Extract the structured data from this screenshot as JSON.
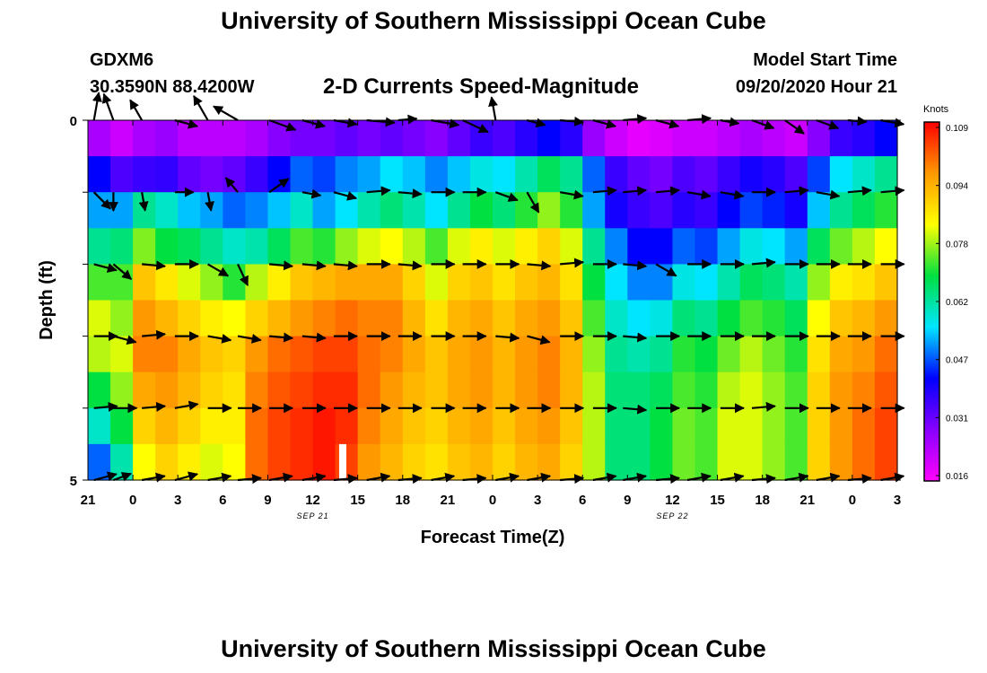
{
  "header": {
    "title": "University of Southern Mississippi Ocean Cube",
    "station_id": "GDXM6",
    "station_coords": "30.3590N 88.4200W",
    "plot_title": "2-D Currents Speed-Magnitude",
    "model_start_label": "Model Start Time",
    "model_start_value": "09/20/2020 Hour 21"
  },
  "footer": {
    "title": "University of Southern Mississippi Ocean Cube"
  },
  "chart_data": {
    "type": "heatmap",
    "title": "2-D Currents Speed-Magnitude",
    "xlabel": "Forecast Time(Z)",
    "ylabel": "Depth (ft)",
    "x_tick_labels": [
      "21",
      "0",
      "3",
      "6",
      "9",
      "12",
      "15",
      "18",
      "21",
      "0",
      "3",
      "6",
      "9",
      "12",
      "15",
      "18",
      "21",
      "0",
      "3"
    ],
    "x_date_labels": [
      {
        "label": "SEP 21",
        "tick_index": 5
      },
      {
        "label": "SEP 22",
        "tick_index": 13
      }
    ],
    "y_tick_labels": [
      "0",
      "5"
    ],
    "ylim": [
      0,
      5
    ],
    "time_range_hours": [
      0,
      54
    ],
    "colorbar": {
      "units": "Knots",
      "ticks": [
        "0.109",
        "0.094",
        "0.078",
        "0.062",
        "0.047",
        "0.031",
        "0.016"
      ],
      "range": [
        0.012,
        0.11
      ],
      "colors": [
        "#ff00ff",
        "#8800ff",
        "#0000ff",
        "#00e5ff",
        "#00e040",
        "#ffff00",
        "#ff9900",
        "#ff0000"
      ]
    },
    "depth_layers_ft": [
      0,
      1,
      2,
      3,
      4,
      5
    ],
    "speed_knots": [
      [
        0.022,
        0.04,
        0.05,
        0.062,
        0.072,
        0.08,
        0.078,
        0.068,
        0.058,
        0.046
      ],
      [
        0.018,
        0.032,
        0.05,
        0.064,
        0.072,
        0.076,
        0.08,
        0.076,
        0.068,
        0.06
      ],
      [
        0.022,
        0.034,
        0.062,
        0.075,
        0.09,
        0.096,
        0.098,
        0.094,
        0.088,
        0.082
      ],
      [
        0.024,
        0.035,
        0.058,
        0.068,
        0.085,
        0.092,
        0.098,
        0.096,
        0.092,
        0.088
      ],
      [
        0.02,
        0.03,
        0.052,
        0.066,
        0.08,
        0.088,
        0.094,
        0.092,
        0.088,
        0.084
      ],
      [
        0.02,
        0.028,
        0.05,
        0.062,
        0.076,
        0.084,
        0.09,
        0.088,
        0.084,
        0.08
      ],
      [
        0.02,
        0.03,
        0.046,
        0.058,
        0.07,
        0.082,
        0.088,
        0.086,
        0.084,
        0.082
      ],
      [
        0.022,
        0.034,
        0.048,
        0.06,
        0.078,
        0.088,
        0.096,
        0.098,
        0.1,
        0.1
      ],
      [
        0.026,
        0.04,
        0.052,
        0.066,
        0.084,
        0.092,
        0.1,
        0.102,
        0.104,
        0.104
      ],
      [
        0.028,
        0.046,
        0.058,
        0.072,
        0.09,
        0.096,
        0.102,
        0.104,
        0.106,
        0.106
      ],
      [
        0.028,
        0.044,
        0.05,
        0.07,
        0.092,
        0.098,
        0.104,
        0.106,
        0.108,
        0.108
      ],
      [
        0.03,
        0.048,
        0.054,
        0.076,
        0.094,
        0.1,
        0.104,
        0.106,
        0.106,
        0.104
      ],
      [
        0.028,
        0.05,
        0.06,
        0.08,
        0.094,
        0.098,
        0.1,
        0.1,
        0.098,
        0.096
      ],
      [
        0.03,
        0.054,
        0.064,
        0.082,
        0.094,
        0.098,
        0.098,
        0.096,
        0.094,
        0.092
      ],
      [
        0.028,
        0.052,
        0.06,
        0.078,
        0.088,
        0.092,
        0.094,
        0.092,
        0.09,
        0.088
      ],
      [
        0.026,
        0.048,
        0.054,
        0.072,
        0.08,
        0.086,
        0.09,
        0.09,
        0.088,
        0.086
      ],
      [
        0.03,
        0.052,
        0.062,
        0.08,
        0.088,
        0.092,
        0.094,
        0.094,
        0.092,
        0.09
      ],
      [
        0.034,
        0.056,
        0.068,
        0.084,
        0.09,
        0.094,
        0.096,
        0.096,
        0.094,
        0.092
      ],
      [
        0.032,
        0.054,
        0.064,
        0.08,
        0.086,
        0.09,
        0.092,
        0.092,
        0.09,
        0.088
      ],
      [
        0.036,
        0.06,
        0.07,
        0.084,
        0.09,
        0.094,
        0.096,
        0.096,
        0.094,
        0.092
      ],
      [
        0.04,
        0.066,
        0.076,
        0.088,
        0.092,
        0.096,
        0.098,
        0.098,
        0.096,
        0.094
      ],
      [
        0.036,
        0.062,
        0.07,
        0.08,
        0.086,
        0.09,
        0.092,
        0.092,
        0.09,
        0.088
      ],
      [
        0.024,
        0.046,
        0.05,
        0.062,
        0.068,
        0.072,
        0.076,
        0.078,
        0.078,
        0.078
      ],
      [
        0.018,
        0.034,
        0.038,
        0.048,
        0.054,
        0.058,
        0.062,
        0.064,
        0.064,
        0.064
      ],
      [
        0.015,
        0.03,
        0.034,
        0.04,
        0.048,
        0.054,
        0.06,
        0.064,
        0.064,
        0.064
      ],
      [
        0.016,
        0.028,
        0.032,
        0.04,
        0.048,
        0.056,
        0.062,
        0.066,
        0.068,
        0.068
      ],
      [
        0.018,
        0.032,
        0.036,
        0.046,
        0.056,
        0.064,
        0.07,
        0.072,
        0.074,
        0.074
      ],
      [
        0.018,
        0.03,
        0.034,
        0.044,
        0.054,
        0.062,
        0.068,
        0.07,
        0.072,
        0.072
      ],
      [
        0.02,
        0.034,
        0.04,
        0.05,
        0.06,
        0.068,
        0.074,
        0.078,
        0.08,
        0.08
      ],
      [
        0.022,
        0.038,
        0.044,
        0.056,
        0.066,
        0.072,
        0.078,
        0.08,
        0.08,
        0.08
      ],
      [
        0.02,
        0.036,
        0.042,
        0.054,
        0.064,
        0.07,
        0.074,
        0.076,
        0.076,
        0.076
      ],
      [
        0.018,
        0.032,
        0.038,
        0.05,
        0.06,
        0.066,
        0.07,
        0.072,
        0.072,
        0.072
      ],
      [
        0.026,
        0.044,
        0.052,
        0.066,
        0.076,
        0.082,
        0.086,
        0.088,
        0.088,
        0.088
      ],
      [
        0.034,
        0.054,
        0.062,
        0.074,
        0.084,
        0.09,
        0.094,
        0.096,
        0.096,
        0.096
      ],
      [
        0.036,
        0.058,
        0.066,
        0.078,
        0.086,
        0.092,
        0.096,
        0.098,
        0.1,
        0.1
      ],
      [
        0.04,
        0.062,
        0.07,
        0.082,
        0.09,
        0.096,
        0.1,
        0.102,
        0.104,
        0.104
      ]
    ],
    "vectors": {
      "depth_rows_ft": [
        0,
        1,
        2,
        3,
        4,
        5
      ],
      "times_hours": [
        0.4,
        1.7,
        3.6,
        5.8,
        8.0,
        10.0,
        12.1,
        14.3,
        16.4,
        18.6,
        20.7,
        22.9,
        25.0,
        27.2,
        29.3,
        31.5,
        33.7,
        35.7,
        37.9,
        40.0,
        42.2,
        44.3,
        46.5,
        48.6,
        50.7,
        52.9
      ],
      "samples": [
        [
          [
            0.06,
            -80
          ],
          [
            0.06,
            -110
          ],
          [
            0.05,
            -120
          ],
          [
            0.05,
            15
          ],
          [
            0.06,
            -120
          ],
          [
            0.06,
            -150
          ],
          [
            0.06,
            20
          ],
          [
            0.05,
            15
          ],
          [
            0.05,
            10
          ],
          [
            0.06,
            5
          ],
          [
            0.04,
            -5
          ],
          [
            0.06,
            10
          ],
          [
            0.06,
            25
          ],
          [
            0.05,
            -100
          ],
          [
            0.04,
            15
          ],
          [
            0.05,
            5
          ],
          [
            0.05,
            15
          ],
          [
            0.05,
            -5
          ],
          [
            0.05,
            15
          ],
          [
            0.05,
            -5
          ],
          [
            0.04,
            10
          ],
          [
            0.05,
            20
          ],
          [
            0.05,
            35
          ],
          [
            0.05,
            20
          ],
          [
            0.04,
            5
          ],
          [
            0.05,
            10
          ]
        ],
        [
          [
            0.05,
            45
          ],
          [
            0.04,
            90
          ],
          [
            0.04,
            80
          ],
          [
            0.04,
            0
          ],
          [
            0.04,
            80
          ],
          [
            0.04,
            -130
          ],
          [
            0.05,
            -35
          ],
          [
            0.04,
            10
          ],
          [
            0.05,
            15
          ],
          [
            0.05,
            -5
          ],
          [
            0.05,
            5
          ],
          [
            0.05,
            0
          ],
          [
            0.05,
            0
          ],
          [
            0.05,
            20
          ],
          [
            0.05,
            60
          ],
          [
            0.05,
            10
          ],
          [
            0.05,
            -5
          ],
          [
            0.05,
            -5
          ],
          [
            0.05,
            -5
          ],
          [
            0.05,
            10
          ],
          [
            0.05,
            10
          ],
          [
            0.05,
            0
          ],
          [
            0.05,
            -5
          ],
          [
            0.05,
            10
          ],
          [
            0.05,
            -5
          ],
          [
            0.05,
            -5
          ]
        ],
        [
          [
            0.05,
            15
          ],
          [
            0.05,
            40
          ],
          [
            0.05,
            5
          ],
          [
            0.05,
            0
          ],
          [
            0.05,
            30
          ],
          [
            0.05,
            65
          ],
          [
            0.05,
            5
          ],
          [
            0.05,
            5
          ],
          [
            0.05,
            5
          ],
          [
            0.05,
            0
          ],
          [
            0.05,
            5
          ],
          [
            0.05,
            0
          ],
          [
            0.05,
            0
          ],
          [
            0.05,
            0
          ],
          [
            0.05,
            5
          ],
          [
            0.05,
            -5
          ],
          [
            0.05,
            0
          ],
          [
            0.05,
            5
          ],
          [
            0.05,
            30
          ],
          [
            0.05,
            0
          ],
          [
            0.05,
            0
          ],
          [
            0.05,
            -5
          ],
          [
            0.05,
            0
          ],
          [
            0.05,
            0
          ],
          [
            0.05,
            0
          ],
          [
            0.05,
            0
          ]
        ],
        [
          [
            0.05,
            0
          ],
          [
            0.05,
            15
          ],
          [
            0.05,
            -5
          ],
          [
            0.05,
            0
          ],
          [
            0.05,
            10
          ],
          [
            0.05,
            10
          ],
          [
            0.05,
            5
          ],
          [
            0.05,
            5
          ],
          [
            0.05,
            0
          ],
          [
            0.05,
            0
          ],
          [
            0.05,
            0
          ],
          [
            0.05,
            0
          ],
          [
            0.05,
            0
          ],
          [
            0.05,
            5
          ],
          [
            0.05,
            15
          ],
          [
            0.05,
            0
          ],
          [
            0.05,
            0
          ],
          [
            0.05,
            5
          ],
          [
            0.05,
            0
          ],
          [
            0.05,
            0
          ],
          [
            0.05,
            0
          ],
          [
            0.05,
            0
          ],
          [
            0.05,
            0
          ],
          [
            0.05,
            0
          ],
          [
            0.05,
            0
          ],
          [
            0.05,
            0
          ]
        ],
        [
          [
            0.05,
            -5
          ],
          [
            0.05,
            0
          ],
          [
            0.05,
            -5
          ],
          [
            0.05,
            -10
          ],
          [
            0.05,
            0
          ],
          [
            0.05,
            0
          ],
          [
            0.05,
            0
          ],
          [
            0.05,
            0
          ],
          [
            0.05,
            0
          ],
          [
            0.05,
            0
          ],
          [
            0.05,
            0
          ],
          [
            0.05,
            0
          ],
          [
            0.05,
            0
          ],
          [
            0.05,
            0
          ],
          [
            0.05,
            0
          ],
          [
            0.05,
            0
          ],
          [
            0.05,
            0
          ],
          [
            0.05,
            5
          ],
          [
            0.05,
            0
          ],
          [
            0.05,
            0
          ],
          [
            0.05,
            0
          ],
          [
            0.05,
            -5
          ],
          [
            0.05,
            0
          ],
          [
            0.05,
            0
          ],
          [
            0.05,
            0
          ],
          [
            0.05,
            0
          ]
        ],
        [
          [
            0.05,
            -15
          ],
          [
            0.04,
            -20
          ],
          [
            0.05,
            -10
          ],
          [
            0.05,
            -15
          ],
          [
            0.05,
            -10
          ],
          [
            0.05,
            -5
          ],
          [
            0.05,
            -10
          ],
          [
            0.05,
            -10
          ],
          [
            0.05,
            -5
          ],
          [
            0.05,
            -10
          ],
          [
            0.05,
            -5
          ],
          [
            0.05,
            -10
          ],
          [
            0.05,
            -5
          ],
          [
            0.05,
            -10
          ],
          [
            0.05,
            -10
          ],
          [
            0.05,
            -5
          ],
          [
            0.05,
            -10
          ],
          [
            0.05,
            -10
          ],
          [
            0.05,
            -5
          ],
          [
            0.05,
            -10
          ],
          [
            0.05,
            -10
          ],
          [
            0.05,
            -5
          ],
          [
            0.05,
            -10
          ],
          [
            0.05,
            -10
          ],
          [
            0.05,
            -5
          ],
          [
            0.05,
            -10
          ]
        ]
      ]
    },
    "no_data_cells": [
      {
        "time_hours": 17.0,
        "depth_ft": 4.75
      }
    ]
  }
}
